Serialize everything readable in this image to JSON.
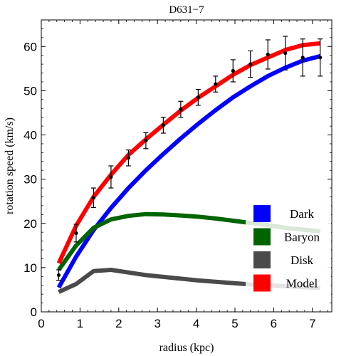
{
  "chart_data": {
    "type": "line",
    "title": "D631−7",
    "xlabel": "radius (kpc)",
    "ylabel": "rotation speed (km/s)",
    "xlim": [
      0,
      7.5
    ],
    "ylim": [
      0,
      66
    ],
    "x_ticks": [
      "0",
      "1",
      "2",
      "3",
      "4",
      "5",
      "6",
      "7"
    ],
    "y_ticks": [
      "0",
      "10",
      "20",
      "30",
      "40",
      "50",
      "60"
    ],
    "grid": false,
    "legend_position": "bottom-right",
    "series": [
      {
        "name": "Dark",
        "color": "#0000ff",
        "x": [
          0.45,
          0.9,
          1.35,
          1.8,
          2.25,
          2.7,
          3.15,
          3.6,
          4.05,
          4.5,
          4.95,
          5.4,
          5.85,
          6.3,
          6.75,
          7.2
        ],
        "y": [
          5.5,
          12.5,
          18.5,
          23.5,
          28.0,
          32.0,
          35.7,
          39.2,
          42.5,
          45.6,
          48.5,
          51.0,
          53.3,
          55.2,
          56.8,
          57.8
        ]
      },
      {
        "name": "Baryon",
        "color": "#006400",
        "x": [
          0.45,
          0.9,
          1.35,
          1.8,
          2.25,
          2.7,
          3.15,
          3.6,
          4.05,
          4.5,
          4.95,
          5.4,
          5.85,
          6.3,
          6.75,
          7.2
        ],
        "y": [
          9.5,
          15.0,
          19.0,
          20.9,
          21.7,
          22.1,
          22.0,
          21.8,
          21.5,
          21.1,
          20.6,
          20.1,
          19.6,
          19.0,
          18.6,
          18.2
        ]
      },
      {
        "name": "Disk",
        "color": "#4a4a4a",
        "x": [
          0.45,
          0.9,
          1.35,
          1.8,
          2.25,
          2.7,
          3.15,
          3.6,
          4.05,
          4.5,
          4.95,
          5.4,
          5.85,
          6.3,
          6.75,
          7.2
        ],
        "y": [
          4.5,
          6.3,
          9.2,
          9.5,
          8.9,
          8.3,
          7.9,
          7.5,
          7.1,
          6.8,
          6.5,
          6.2,
          6.0,
          5.8,
          5.6,
          5.4
        ]
      },
      {
        "name": "Model",
        "color": "#ff0000",
        "x": [
          0.45,
          0.9,
          1.35,
          1.8,
          2.25,
          2.7,
          3.15,
          3.6,
          4.05,
          4.5,
          4.95,
          5.4,
          5.85,
          6.3,
          6.75,
          7.2
        ],
        "y": [
          11.0,
          19.5,
          26.0,
          31.0,
          35.5,
          39.0,
          42.3,
          45.5,
          48.4,
          51.0,
          53.6,
          55.8,
          57.5,
          59.2,
          60.3,
          60.7
        ]
      }
    ],
    "observations": {
      "name": "data",
      "color": "#000000",
      "x": [
        0.45,
        0.9,
        1.35,
        1.8,
        2.25,
        2.7,
        3.15,
        3.6,
        4.05,
        4.5,
        4.95,
        5.4,
        5.85,
        6.3,
        6.75,
        7.2
      ],
      "y": [
        8.3,
        17.8,
        25.8,
        30.5,
        34.8,
        38.7,
        42.2,
        45.8,
        48.5,
        51.5,
        54.5,
        56.0,
        58.2,
        58.5,
        57.5,
        57.5
      ],
      "yerr": [
        1.2,
        2.0,
        2.2,
        2.5,
        1.8,
        1.8,
        1.8,
        1.8,
        1.8,
        1.8,
        2.5,
        3.0,
        3.3,
        3.8,
        4.2,
        4.2
      ]
    }
  }
}
